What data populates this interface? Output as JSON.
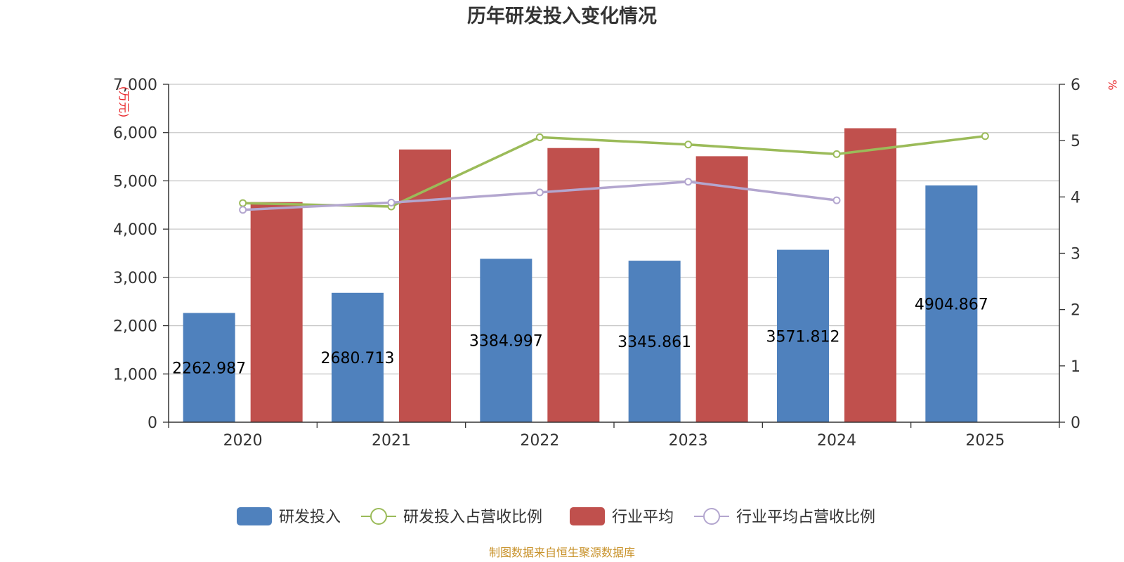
{
  "title": "历年研发投入变化情况",
  "source": "制图数据来自恒生聚源数据库",
  "colors": {
    "rd_bar": "#4f81bd",
    "industry_bar": "#c0504d",
    "rd_ratio_line": "#9bbb59",
    "industry_ratio_line": "#b3a6cf",
    "grid": "#c8c8c8",
    "axis": "#333333",
    "unit_label": "#e8262a",
    "source_text": "#c8922a"
  },
  "chart_data": {
    "type": "bar",
    "title": "历年研发投入变化情况",
    "categories": [
      "2020",
      "2021",
      "2022",
      "2023",
      "2024",
      "2025"
    ],
    "y_left": {
      "unit": "(万元)",
      "ylim": [
        0,
        7000
      ],
      "ticks": [
        "0",
        "1,000",
        "2,000",
        "3,000",
        "4,000",
        "5,000",
        "6,000",
        "7,000"
      ]
    },
    "y_right": {
      "unit": "%",
      "ylim": [
        0,
        6
      ],
      "ticks": [
        "0",
        "1",
        "2",
        "3",
        "4",
        "5",
        "6"
      ]
    },
    "grid": true,
    "legend_position": "bottom",
    "series": [
      {
        "name": "研发投入",
        "kind": "bar",
        "axis": "left",
        "color": "#4f81bd",
        "values": [
          2262.987,
          2680.713,
          3384.997,
          3345.861,
          3571.812,
          4904.867
        ],
        "labels": [
          "2262.987",
          "2680.713",
          "3384.997",
          "3345.861",
          "3571.812",
          "4904.867"
        ]
      },
      {
        "name": "研发投入占营收比例",
        "kind": "line",
        "axis": "right",
        "color": "#9bbb59",
        "values": [
          3.89,
          3.83,
          5.06,
          4.93,
          4.76,
          5.08
        ]
      },
      {
        "name": "行业平均",
        "kind": "bar",
        "axis": "left",
        "color": "#c0504d",
        "values": [
          4560,
          5650,
          5680,
          5510,
          6090,
          null
        ]
      },
      {
        "name": "行业平均占营收比例",
        "kind": "line",
        "axis": "right",
        "color": "#b3a6cf",
        "values": [
          3.77,
          3.9,
          4.08,
          4.27,
          3.94,
          null
        ]
      }
    ]
  }
}
